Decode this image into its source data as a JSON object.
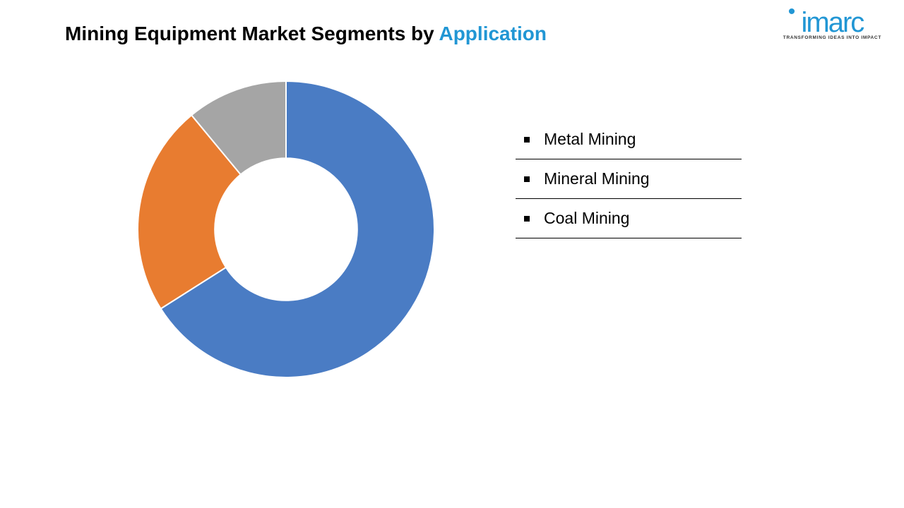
{
  "title": {
    "main": "Mining Equipment Market Segments by ",
    "highlight": "Application",
    "main_color": "#000000",
    "highlight_color": "#2196d4",
    "fontsize": 28
  },
  "logo": {
    "text": "imarc",
    "tagline": "TRANSFORMING IDEAS INTO IMPACT",
    "color": "#2196d4"
  },
  "chart": {
    "type": "donut",
    "segments": [
      {
        "label": "Metal Mining",
        "value": 66,
        "color": "#4a7cc4"
      },
      {
        "label": "Mineral Mining",
        "value": 23,
        "color": "#e87c30"
      },
      {
        "label": "Coal Mining",
        "value": 11,
        "color": "#a5a5a5"
      }
    ],
    "inner_radius_ratio": 0.48,
    "stroke_color": "#ffffff",
    "stroke_width": 2,
    "background_color": "#ffffff",
    "start_angle": -90
  },
  "legend": {
    "items": [
      {
        "label": "Metal Mining"
      },
      {
        "label": "Mineral Mining"
      },
      {
        "label": "Coal Mining"
      }
    ],
    "fontsize": 23,
    "text_color": "#000000"
  }
}
